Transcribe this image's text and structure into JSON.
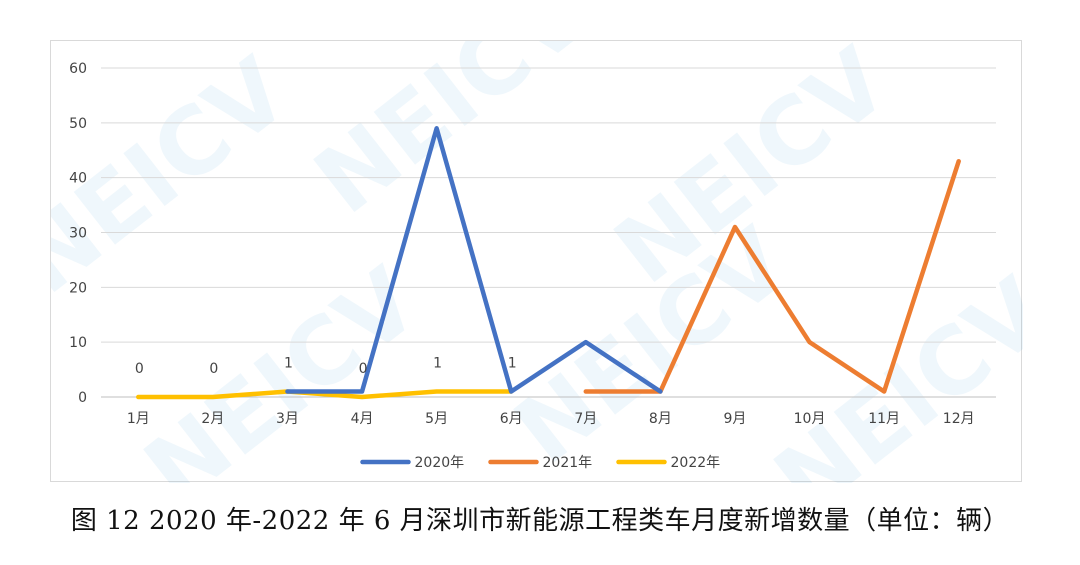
{
  "caption": "图 12 2020 年-2022 年 6 月深圳市新能源工程类车月度新增数量（单位：辆）",
  "watermark": "NEICV",
  "chart_data": {
    "type": "line",
    "title": "",
    "xlabel": "",
    "ylabel": "",
    "categories": [
      "1月",
      "2月",
      "3月",
      "4月",
      "5月",
      "6月",
      "7月",
      "8月",
      "9月",
      "10月",
      "11月",
      "12月"
    ],
    "y_ticks": [
      "0",
      "10",
      "20",
      "30",
      "40",
      "50",
      "60"
    ],
    "ylim": [
      0,
      60
    ],
    "grid": "horizontal",
    "legend_position": "bottom",
    "series": [
      {
        "name": "2020年",
        "color": "#4472C4",
        "values": [
          null,
          null,
          1,
          1,
          49,
          1,
          10,
          1,
          null,
          null,
          null,
          null
        ]
      },
      {
        "name": "2021年",
        "color": "#ED7D31",
        "values": [
          null,
          null,
          null,
          null,
          null,
          null,
          1,
          1,
          31,
          10,
          1,
          43
        ]
      },
      {
        "name": "2022年",
        "color": "#FFC000",
        "values": [
          0,
          0,
          1,
          0,
          1,
          1,
          null,
          null,
          null,
          null,
          null,
          null
        ]
      }
    ],
    "data_labels": [
      "0",
      "0",
      "1",
      "0",
      "1",
      "1"
    ]
  }
}
